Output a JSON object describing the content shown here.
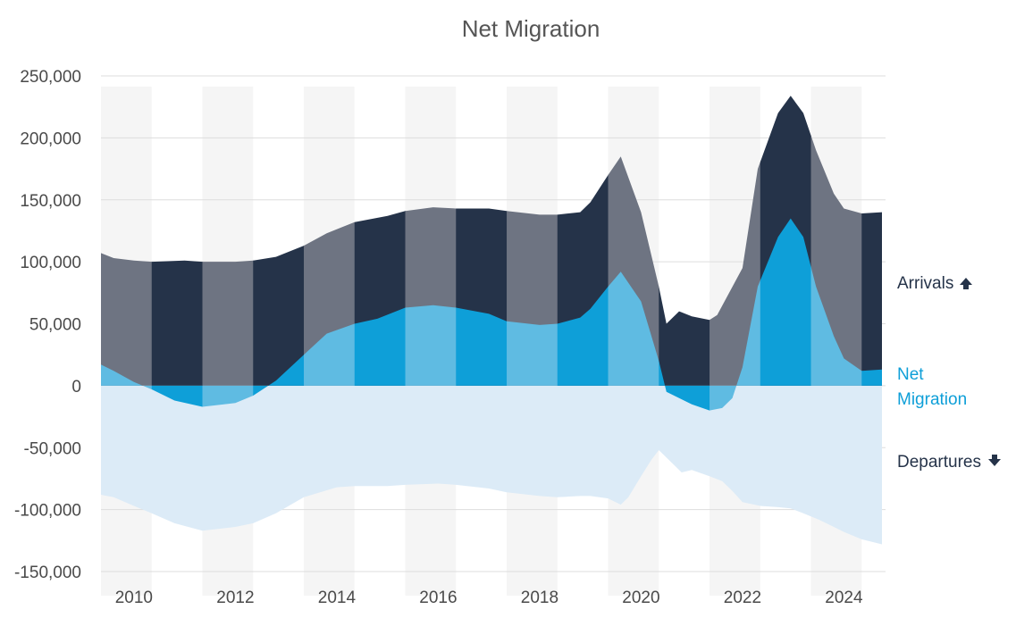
{
  "chart_data": {
    "type": "area",
    "title": "Net Migration",
    "xlabel": "",
    "ylabel": "",
    "ylim": [
      -150000,
      250000
    ],
    "xlim": [
      2009.35,
      2024.75
    ],
    "y_ticks": [
      250000,
      200000,
      150000,
      100000,
      50000,
      0,
      -50000,
      -100000,
      -150000
    ],
    "y_tick_labels": [
      "250,000",
      "200,000",
      "150,000",
      "100,000",
      "50,000",
      "0",
      "-50,000",
      "-100,000",
      "-150,000"
    ],
    "x_ticks": [
      2010,
      2012,
      2014,
      2016,
      2018,
      2020,
      2022,
      2024
    ],
    "x_tick_labels": [
      "2010",
      "2012",
      "2014",
      "2016",
      "2018",
      "2020",
      "2022",
      "2024"
    ],
    "grid": true,
    "band_edges": [
      2009.35,
      2010.35,
      2011.35,
      2012.35,
      2013.35,
      2014.35,
      2015.35,
      2016.35,
      2017.35,
      2018.35,
      2019.35,
      2020.35,
      2021.35,
      2022.35,
      2023.35,
      2024.35,
      2024.75
    ],
    "legend_position": "right",
    "series": [
      {
        "name": "Arrivals",
        "color": "#253349",
        "x": [
          2009.35,
          2009.6,
          2010.0,
          2010.35,
          2011.0,
          2011.35,
          2012.0,
          2012.35,
          2012.8,
          2013.35,
          2013.8,
          2014.35,
          2015.0,
          2015.35,
          2015.9,
          2016.35,
          2017.0,
          2017.35,
          2018.0,
          2018.35,
          2018.8,
          2019.0,
          2019.35,
          2019.6,
          2020.0,
          2020.35,
          2020.5,
          2020.75,
          2021.0,
          2021.35,
          2021.5,
          2022.0,
          2022.3,
          2022.7,
          2022.95,
          2023.2,
          2023.45,
          2023.8,
          2024.0,
          2024.35,
          2024.75
        ],
        "values": [
          107000,
          103000,
          101000,
          100000,
          101000,
          100000,
          100000,
          101000,
          104000,
          113000,
          123000,
          132000,
          137000,
          141000,
          144000,
          143000,
          143000,
          141000,
          138000,
          138000,
          140000,
          148000,
          170000,
          185000,
          140000,
          80000,
          50000,
          60000,
          56000,
          53000,
          57000,
          95000,
          175000,
          220000,
          234000,
          220000,
          190000,
          155000,
          143000,
          139000,
          140000
        ]
      },
      {
        "name": "Net Migration",
        "color": "#0e9fd8",
        "x": [
          2009.35,
          2009.6,
          2010.0,
          2010.35,
          2010.8,
          2011.35,
          2012.0,
          2012.35,
          2012.8,
          2013.35,
          2013.8,
          2014.35,
          2014.8,
          2015.35,
          2015.9,
          2016.35,
          2017.0,
          2017.35,
          2018.0,
          2018.35,
          2018.8,
          2019.0,
          2019.35,
          2019.6,
          2020.0,
          2020.35,
          2020.5,
          2020.75,
          2021.0,
          2021.35,
          2021.6,
          2021.8,
          2022.0,
          2022.3,
          2022.7,
          2022.95,
          2023.2,
          2023.45,
          2023.8,
          2024.0,
          2024.35,
          2024.75
        ],
        "values": [
          17000,
          12000,
          3000,
          -3000,
          -12000,
          -17000,
          -14000,
          -8000,
          4000,
          25000,
          42000,
          50000,
          54000,
          63000,
          65000,
          63000,
          58000,
          52000,
          49000,
          50000,
          55000,
          62000,
          80000,
          92000,
          68000,
          20000,
          -5000,
          -10000,
          -15000,
          -20000,
          -18000,
          -10000,
          15000,
          80000,
          120000,
          135000,
          120000,
          80000,
          40000,
          22000,
          12000,
          13000
        ]
      },
      {
        "name": "Departures",
        "color": "#dcebf7",
        "x": [
          2009.35,
          2009.6,
          2010.0,
          2010.35,
          2010.8,
          2011.35,
          2012.0,
          2012.35,
          2012.8,
          2013.35,
          2014.0,
          2014.35,
          2015.0,
          2015.35,
          2016.0,
          2016.35,
          2017.0,
          2017.35,
          2018.0,
          2018.35,
          2018.8,
          2019.0,
          2019.35,
          2019.6,
          2019.75,
          2020.0,
          2020.2,
          2020.35,
          2020.6,
          2020.8,
          2021.0,
          2021.35,
          2021.6,
          2021.8,
          2022.0,
          2022.35,
          2022.7,
          2022.95,
          2023.2,
          2023.5,
          2023.8,
          2024.0,
          2024.35,
          2024.75
        ],
        "values": [
          -88000,
          -90000,
          -97000,
          -103000,
          -111000,
          -117000,
          -114000,
          -111000,
          -103000,
          -90000,
          -82000,
          -81000,
          -81000,
          -80000,
          -79000,
          -80000,
          -83000,
          -86000,
          -89000,
          -90000,
          -89000,
          -89000,
          -91000,
          -96000,
          -90000,
          -73000,
          -60000,
          -52000,
          -62000,
          -70000,
          -68000,
          -73000,
          -77000,
          -85000,
          -94000,
          -97000,
          -98000,
          -99000,
          -103000,
          -108000,
          -114000,
          -118000,
          -124000,
          -128000
        ]
      }
    ]
  },
  "legend": {
    "arrivals_label": "Arrivals",
    "net_label_line1": "Net",
    "net_label_line2": "Migration",
    "departures_label": "Departures",
    "arrivals_icon": "arrow-up-icon",
    "departures_icon": "arrow-down-icon"
  },
  "colors": {
    "arrivals_dark": "#253349",
    "arrivals_light": "#6e7482",
    "net_dark": "#0e9fd8",
    "net_light": "#5fbbe2",
    "departures": "#dcebf7",
    "band_light": "#f5f5f5",
    "grid": "#dddddd",
    "legend_dark": "#253349",
    "legend_blue": "#0e9fd8"
  }
}
